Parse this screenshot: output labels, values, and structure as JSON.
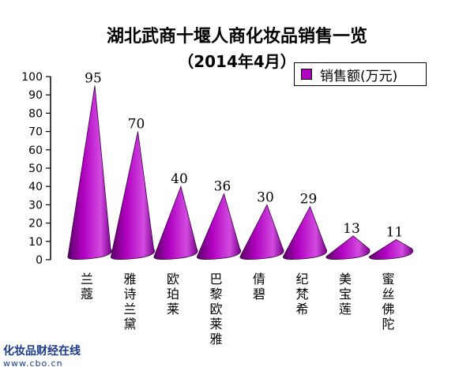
{
  "footer": {
    "brand": "化妆品财经在线",
    "url": "www.cbo.cn"
  },
  "chart_data": {
    "type": "bar",
    "title": "湖北武商十堰人商化妆品销售一览",
    "subtitle": "（2014年4月）",
    "legend": {
      "label": "销售额(万元)",
      "position": "top-right"
    },
    "series_color": "#b000c0",
    "categories": [
      "兰蔻",
      "雅诗兰黛",
      "欧珀莱",
      "巴黎欧莱雅",
      "倩碧",
      "纪梵希",
      "美宝莲",
      "蜜丝佛陀"
    ],
    "series": [
      {
        "name": "销售额(万元)",
        "values": [
          95,
          70,
          40,
          36,
          30,
          29,
          13,
          11
        ]
      }
    ],
    "ylim": [
      0,
      100
    ],
    "yticks": [
      0,
      10,
      20,
      30,
      40,
      50,
      60,
      70,
      80,
      90,
      100
    ],
    "xlabel": "",
    "ylabel": "",
    "grid": false
  }
}
